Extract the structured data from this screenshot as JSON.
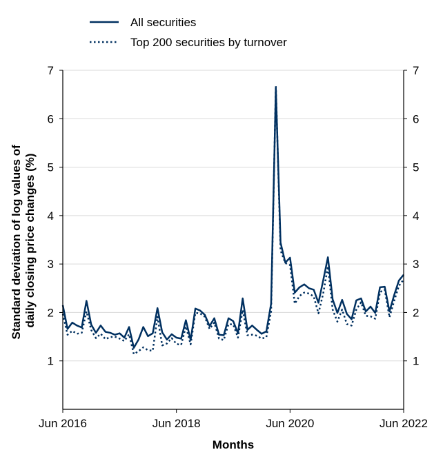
{
  "chart_data": {
    "type": "line",
    "title": "",
    "xlabel": "Months",
    "ylabel": "Standard deviation of log values of daily closing price changes (%)",
    "ylabel_lines": [
      "Standard deviation of log values of",
      "daily closing price changes (%)"
    ],
    "ylim": [
      0,
      7
    ],
    "yticks": [
      1,
      2,
      3,
      4,
      5,
      6,
      7
    ],
    "grid": "horizontal",
    "legend_position": "top-left",
    "xrange": [
      "2016-06",
      "2022-06"
    ],
    "xticks": [
      {
        "month": "2016-06",
        "label": "Jun 2016"
      },
      {
        "month": "2018-06",
        "label": "Jun 2018"
      },
      {
        "month": "2020-06",
        "label": "Jun 2020"
      },
      {
        "month": "2022-06",
        "label": "Jun 2022"
      }
    ],
    "series": [
      {
        "name": "All securities",
        "style": "solid",
        "color": "#003060",
        "points": [
          [
            "2016-06",
            2.15
          ],
          [
            "2016-07",
            1.66
          ],
          [
            "2016-08",
            1.79
          ],
          [
            "2016-09",
            1.73
          ],
          [
            "2016-10",
            1.69
          ],
          [
            "2016-11",
            2.24
          ],
          [
            "2016-12",
            1.75
          ],
          [
            "2017-01",
            1.58
          ],
          [
            "2017-02",
            1.73
          ],
          [
            "2017-03",
            1.6
          ],
          [
            "2017-04",
            1.58
          ],
          [
            "2017-05",
            1.54
          ],
          [
            "2017-06",
            1.57
          ],
          [
            "2017-07",
            1.48
          ],
          [
            "2017-08",
            1.7
          ],
          [
            "2017-09",
            1.27
          ],
          [
            "2017-10",
            1.44
          ],
          [
            "2017-11",
            1.7
          ],
          [
            "2017-12",
            1.51
          ],
          [
            "2018-01",
            1.57
          ],
          [
            "2018-02",
            2.09
          ],
          [
            "2018-03",
            1.59
          ],
          [
            "2018-04",
            1.44
          ],
          [
            "2018-05",
            1.55
          ],
          [
            "2018-06",
            1.48
          ],
          [
            "2018-07",
            1.46
          ],
          [
            "2018-08",
            1.84
          ],
          [
            "2018-09",
            1.43
          ],
          [
            "2018-10",
            2.08
          ],
          [
            "2018-11",
            2.04
          ],
          [
            "2018-12",
            1.95
          ],
          [
            "2019-01",
            1.72
          ],
          [
            "2019-02",
            1.88
          ],
          [
            "2019-03",
            1.54
          ],
          [
            "2019-04",
            1.53
          ],
          [
            "2019-05",
            1.88
          ],
          [
            "2019-06",
            1.82
          ],
          [
            "2019-07",
            1.57
          ],
          [
            "2019-08",
            2.29
          ],
          [
            "2019-09",
            1.64
          ],
          [
            "2019-10",
            1.73
          ],
          [
            "2019-11",
            1.64
          ],
          [
            "2019-12",
            1.56
          ],
          [
            "2020-01",
            1.61
          ],
          [
            "2020-02",
            2.18
          ],
          [
            "2020-03",
            6.62
          ],
          [
            "2020-04",
            3.44
          ],
          [
            "2020-05",
            3.03
          ],
          [
            "2020-06",
            3.13
          ],
          [
            "2020-07",
            2.41
          ],
          [
            "2020-08",
            2.52
          ],
          [
            "2020-09",
            2.58
          ],
          [
            "2020-10",
            2.5
          ],
          [
            "2020-11",
            2.47
          ],
          [
            "2020-12",
            2.2
          ],
          [
            "2021-01",
            2.66
          ],
          [
            "2021-02",
            3.14
          ],
          [
            "2021-03",
            2.27
          ],
          [
            "2021-04",
            1.99
          ],
          [
            "2021-05",
            2.26
          ],
          [
            "2021-06",
            1.97
          ],
          [
            "2021-07",
            1.86
          ],
          [
            "2021-08",
            2.25
          ],
          [
            "2021-09",
            2.29
          ],
          [
            "2021-10",
            2.02
          ],
          [
            "2021-11",
            2.12
          ],
          [
            "2021-12",
            1.99
          ],
          [
            "2022-01",
            2.52
          ],
          [
            "2022-02",
            2.53
          ],
          [
            "2022-03",
            2.02
          ],
          [
            "2022-04",
            2.36
          ],
          [
            "2022-05",
            2.66
          ],
          [
            "2022-06",
            2.78
          ]
        ]
      },
      {
        "name": "Top 200 securities by turnover",
        "style": "dotted",
        "color": "#003060",
        "points": [
          [
            "2016-06",
            1.97
          ],
          [
            "2016-07",
            1.54
          ],
          [
            "2016-08",
            1.62
          ],
          [
            "2016-09",
            1.56
          ],
          [
            "2016-10",
            1.58
          ],
          [
            "2016-11",
            2.02
          ],
          [
            "2016-12",
            1.64
          ],
          [
            "2017-01",
            1.47
          ],
          [
            "2017-02",
            1.56
          ],
          [
            "2017-03",
            1.45
          ],
          [
            "2017-04",
            1.49
          ],
          [
            "2017-05",
            1.5
          ],
          [
            "2017-06",
            1.46
          ],
          [
            "2017-07",
            1.41
          ],
          [
            "2017-08",
            1.55
          ],
          [
            "2017-09",
            1.14
          ],
          [
            "2017-10",
            1.2
          ],
          [
            "2017-11",
            1.28
          ],
          [
            "2017-12",
            1.22
          ],
          [
            "2018-01",
            1.21
          ],
          [
            "2018-02",
            1.91
          ],
          [
            "2018-03",
            1.32
          ],
          [
            "2018-04",
            1.36
          ],
          [
            "2018-05",
            1.47
          ],
          [
            "2018-06",
            1.35
          ],
          [
            "2018-07",
            1.33
          ],
          [
            "2018-08",
            1.71
          ],
          [
            "2018-09",
            1.34
          ],
          [
            "2018-10",
            1.99
          ],
          [
            "2018-11",
            1.98
          ],
          [
            "2018-12",
            1.91
          ],
          [
            "2019-01",
            1.66
          ],
          [
            "2019-02",
            1.79
          ],
          [
            "2019-03",
            1.46
          ],
          [
            "2019-04",
            1.43
          ],
          [
            "2019-05",
            1.76
          ],
          [
            "2019-06",
            1.75
          ],
          [
            "2019-07",
            1.48
          ],
          [
            "2019-08",
            2.05
          ],
          [
            "2019-09",
            1.53
          ],
          [
            "2019-10",
            1.54
          ],
          [
            "2019-11",
            1.52
          ],
          [
            "2019-12",
            1.46
          ],
          [
            "2020-01",
            1.49
          ],
          [
            "2020-02",
            2.02
          ],
          [
            "2020-03",
            6.68
          ],
          [
            "2020-04",
            3.28
          ],
          [
            "2020-05",
            3.02
          ],
          [
            "2020-06",
            2.98
          ],
          [
            "2020-07",
            2.18
          ],
          [
            "2020-08",
            2.34
          ],
          [
            "2020-09",
            2.41
          ],
          [
            "2020-10",
            2.39
          ],
          [
            "2020-11",
            2.33
          ],
          [
            "2020-12",
            1.98
          ],
          [
            "2021-01",
            2.39
          ],
          [
            "2021-02",
            2.95
          ],
          [
            "2021-03",
            2.06
          ],
          [
            "2021-04",
            1.81
          ],
          [
            "2021-05",
            2.06
          ],
          [
            "2021-06",
            1.76
          ],
          [
            "2021-07",
            1.73
          ],
          [
            "2021-08",
            2.06
          ],
          [
            "2021-09",
            2.21
          ],
          [
            "2021-10",
            1.93
          ],
          [
            "2021-11",
            1.92
          ],
          [
            "2021-12",
            1.87
          ],
          [
            "2022-01",
            2.42
          ],
          [
            "2022-02",
            2.47
          ],
          [
            "2022-03",
            1.9
          ],
          [
            "2022-04",
            2.24
          ],
          [
            "2022-05",
            2.55
          ],
          [
            "2022-06",
            2.68
          ]
        ]
      }
    ]
  }
}
